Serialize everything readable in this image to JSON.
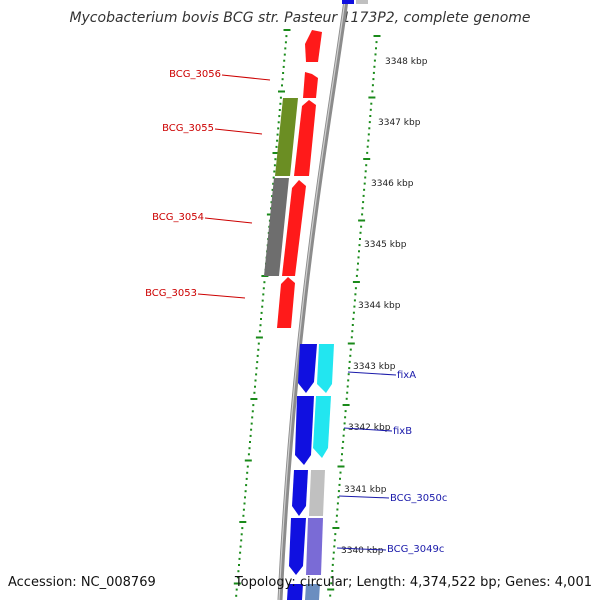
{
  "title": "Mycobacterium bovis BCG str. Pasteur 1173P2, complete genome",
  "footer": {
    "accession": "Accession: NC_008769",
    "topology": "Topology: circular; Length: 4,374,522 bp; Genes: 4,001"
  },
  "colors": {
    "backbone": "#8c8c8c",
    "tick": "#1a8a1a",
    "left_label": "#cc0000",
    "right_label": "#1a1aaa",
    "red_gene": "#ff1a1a",
    "green_gene": "#6b8e23",
    "gray_gene": "#6e6e6e",
    "blue_gene": "#1010e0",
    "cyan_gene": "#22e6f0",
    "lightgray_gene": "#c0c0c0",
    "purple_gene": "#7a6bd6"
  },
  "kbp_labels": [
    {
      "text": "3348 kbp"
    },
    {
      "text": "3347 kbp"
    },
    {
      "text": "3346 kbp"
    },
    {
      "text": "3345 kbp"
    },
    {
      "text": "3344 kbp"
    },
    {
      "text": "3343 kbp"
    },
    {
      "text": "3342 kbp"
    },
    {
      "text": "3341 kbp"
    },
    {
      "text": "3340 kbp"
    }
  ],
  "left_genes": [
    {
      "label": "BCG_3056"
    },
    {
      "label": "BCG_3055"
    },
    {
      "label": "BCG_3054"
    },
    {
      "label": "BCG_3053"
    }
  ],
  "right_genes": [
    {
      "label": "fixA"
    },
    {
      "label": "fixB"
    },
    {
      "label": "BCG_3050c"
    },
    {
      "label": "BCG_3049c"
    }
  ]
}
